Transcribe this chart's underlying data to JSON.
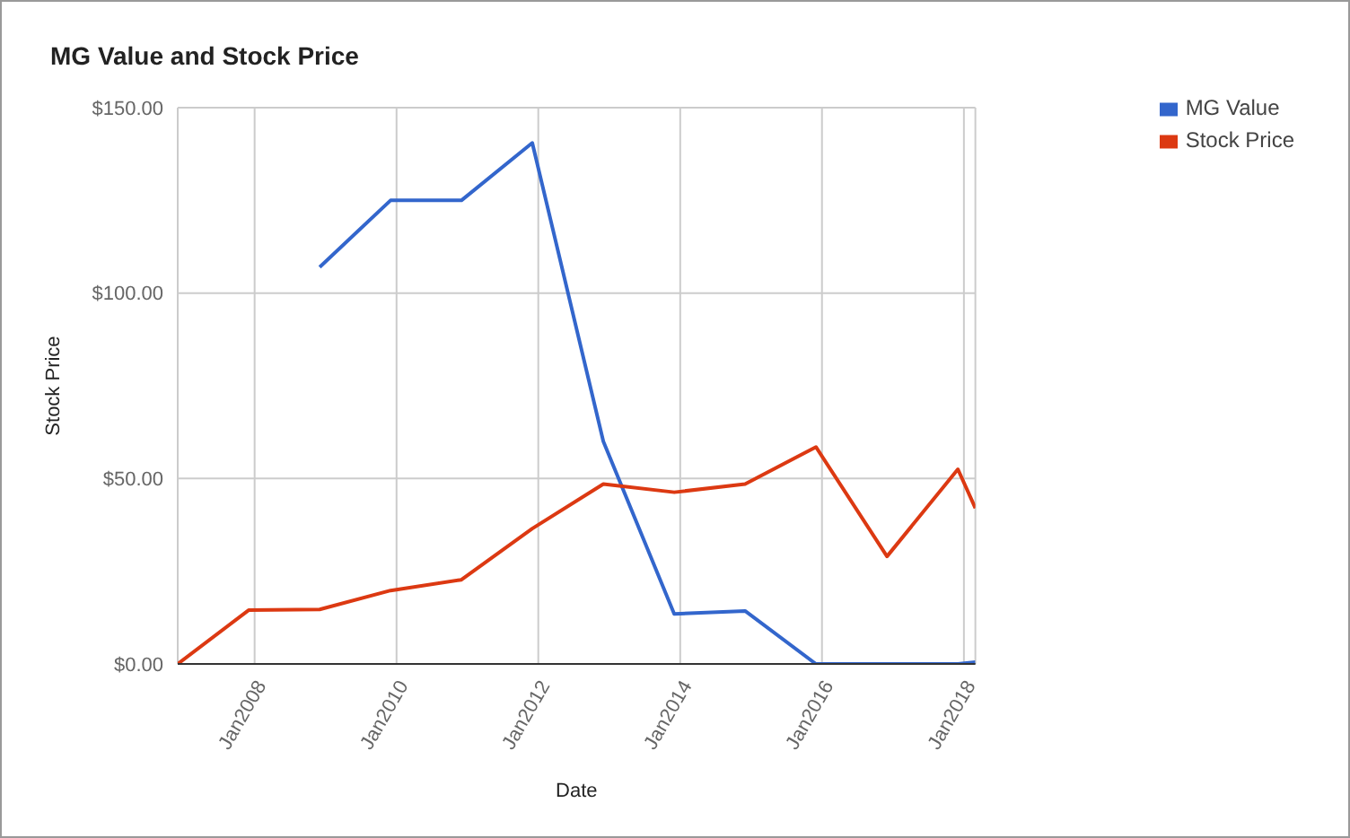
{
  "chart_data": {
    "type": "line",
    "title": "MG Value and Stock Price",
    "xlabel": "Date",
    "ylabel": "Stock Price",
    "x": [
      "2006-12",
      "2007-12",
      "2008-12",
      "2009-12",
      "2010-12",
      "2011-12",
      "2012-12",
      "2013-12",
      "2014-12",
      "2015-12",
      "2016-12",
      "2017-12",
      "2018-03"
    ],
    "series": [
      {
        "name": "MG Value",
        "color": "#3366cc",
        "values": [
          null,
          null,
          107,
          125,
          125,
          140.5,
          60,
          13.5,
          14.3,
          0,
          0,
          0,
          0.5
        ]
      },
      {
        "name": "Stock Price",
        "color": "#dc3912",
        "values": [
          0,
          14.5,
          14.7,
          19.8,
          22.7,
          36.5,
          48.5,
          46.3,
          48.5,
          58.5,
          29,
          52.5,
          42
        ]
      }
    ],
    "xlim": [
      "2006-12",
      "2018-03"
    ],
    "xticks": [
      {
        "value": "2008-01",
        "label": "Jan2008"
      },
      {
        "value": "2010-01",
        "label": "Jan2010"
      },
      {
        "value": "2012-01",
        "label": "Jan2012"
      },
      {
        "value": "2014-01",
        "label": "Jan2014"
      },
      {
        "value": "2016-01",
        "label": "Jan2016"
      },
      {
        "value": "2018-01",
        "label": "Jan2018"
      }
    ],
    "ylim": [
      0,
      150
    ],
    "yticks": [
      {
        "value": 0,
        "label": "$0.00"
      },
      {
        "value": 50,
        "label": "$50.00"
      },
      {
        "value": 100,
        "label": "$100.00"
      },
      {
        "value": 150,
        "label": "$150.00"
      }
    ],
    "grid": true,
    "legend": "top right",
    "marker": "none",
    "line_style": "solid"
  }
}
